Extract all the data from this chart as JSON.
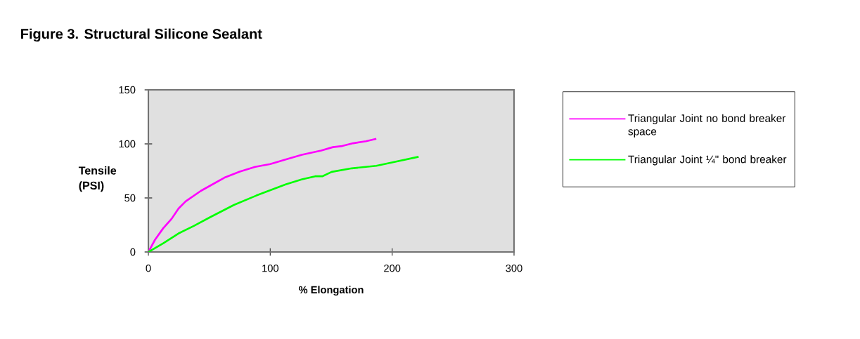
{
  "chart_data": {
    "type": "line",
    "title": "Figure 3. Structural Silicone Sealant",
    "xlabel": "% Elongation",
    "ylabel": "Tensile (PSI)",
    "xlim": [
      0,
      300
    ],
    "xticks": [
      0,
      100,
      200,
      300
    ],
    "ylim": [
      0,
      150
    ],
    "yticks": [
      0,
      50,
      100,
      150
    ],
    "grid": false,
    "legend": "right",
    "marker": "none",
    "line_style": "solid",
    "series": [
      {
        "name": "Triangular Joint no bond breaker space",
        "color": "#ff00ff",
        "x": [
          0,
          5.4,
          12.2,
          19,
          24.8,
          30.6,
          43,
          62.5,
          75,
          87.6,
          100,
          112.6,
          126,
          141.8,
          151.4,
          159,
          168,
          178.5,
          187
        ],
        "values": [
          0,
          11.2,
          22,
          30.6,
          40.3,
          46.8,
          56.5,
          68.8,
          74.4,
          78.7,
          81.3,
          85.6,
          89.9,
          93.8,
          97,
          98,
          100.6,
          102.4,
          104.7
        ]
      },
      {
        "name": "Triangular Joint ¼\" bond breaker",
        "color": "#00ff00",
        "x": [
          0,
          12.2,
          24.8,
          37.3,
          50.9,
          70.2,
          88.6,
          112.6,
          126,
          136.8,
          142.7,
          150.4,
          166.9,
          187,
          199.8,
          221.7
        ],
        "values": [
          0,
          8,
          17.2,
          24.1,
          32.3,
          43.5,
          52.2,
          62.5,
          67.2,
          70,
          70,
          74.1,
          77.4,
          79.7,
          82.8,
          88.1
        ]
      }
    ]
  }
}
